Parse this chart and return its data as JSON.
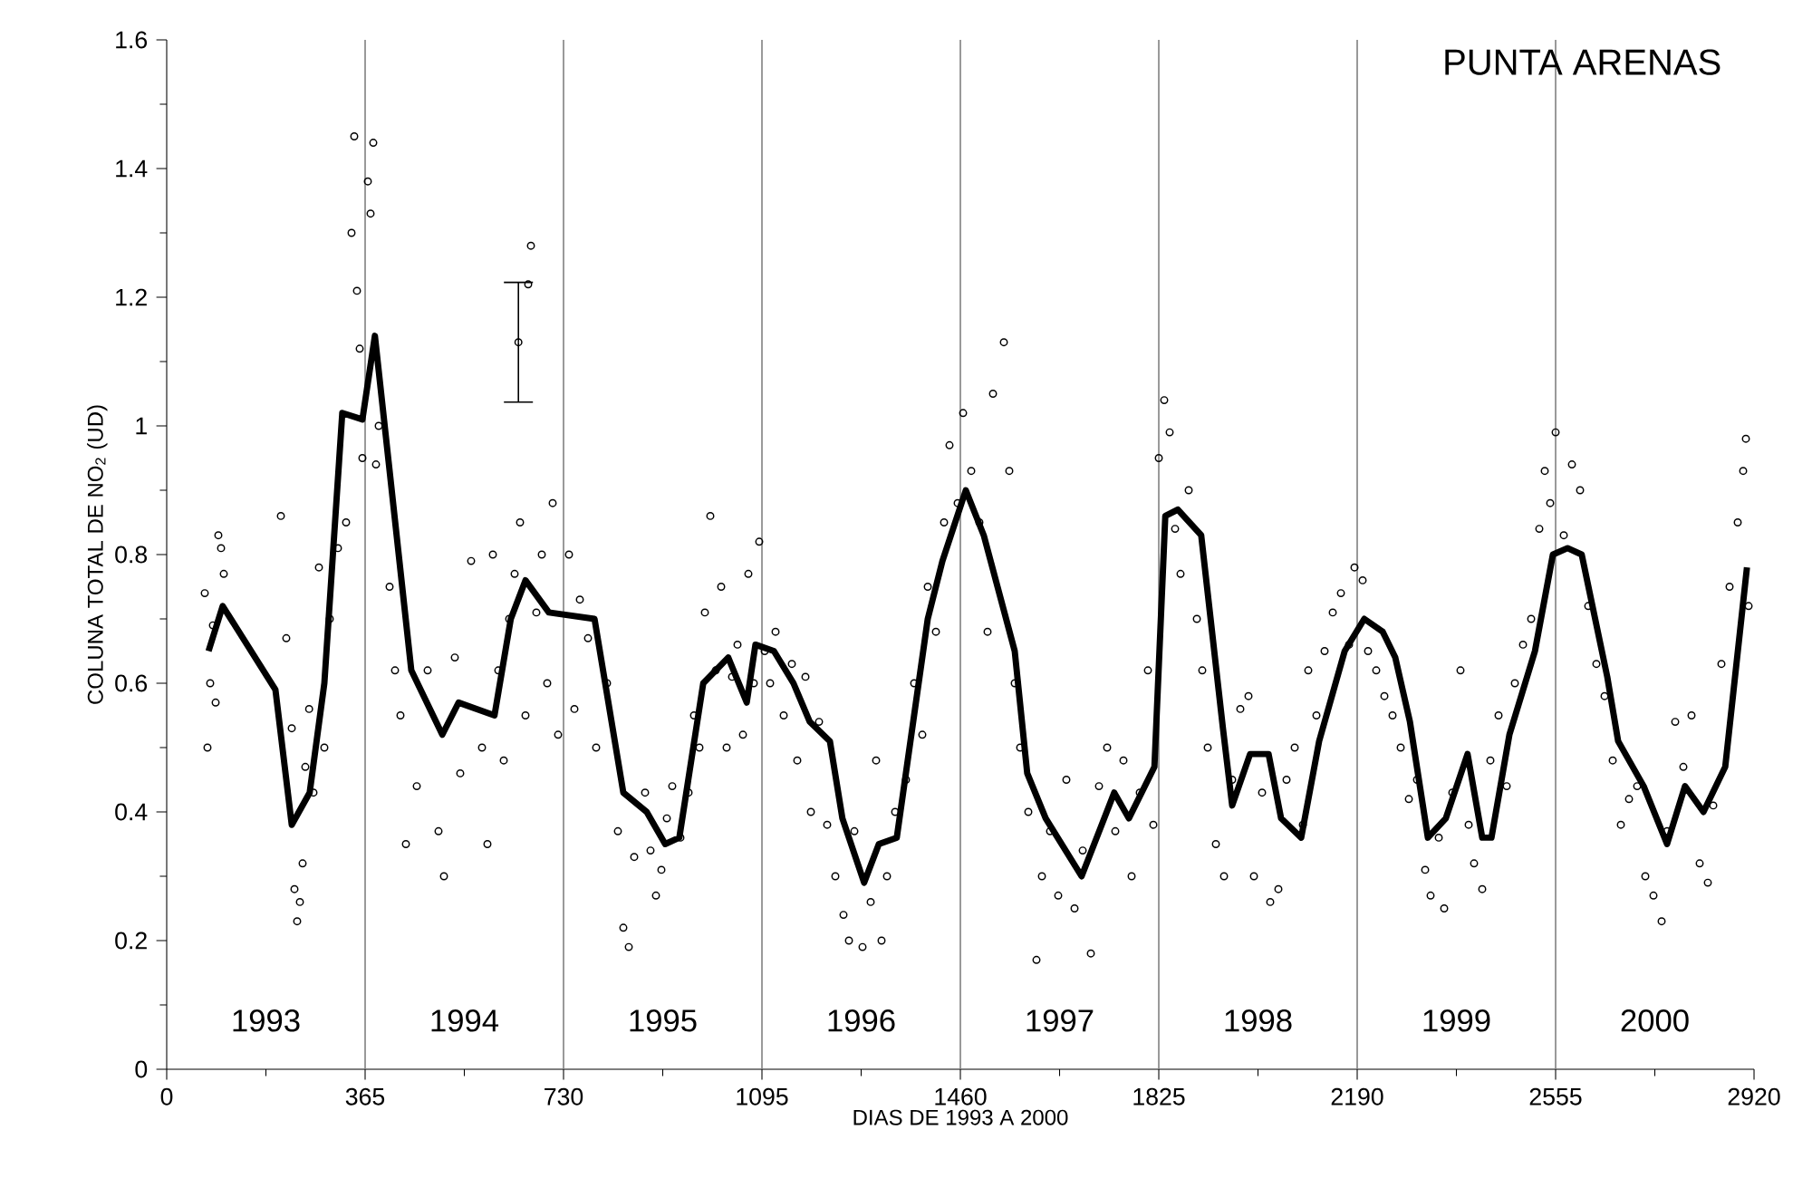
{
  "chart_data": {
    "type": "scatter",
    "title": "PUNTA ARENAS",
    "xlabel": "DIAS DE 1993 A 2000",
    "ylabel": "COLUNA TOTAL DE NO$_{2}$ (UD)",
    "xlim": [
      0,
      2920
    ],
    "xticks": [
      0,
      365,
      730,
      1095,
      1460,
      1825,
      2190,
      2555,
      2920
    ],
    "ylim": [
      0,
      1.6
    ],
    "yticks": [
      0,
      0.2,
      0.4,
      0.6,
      0.8,
      1,
      1.2,
      1.4,
      1.6
    ],
    "ref_lines": [
      {
        "axis": "x",
        "value": 365,
        "color": "#808080"
      },
      {
        "axis": "x",
        "value": 730,
        "color": "#808080"
      },
      {
        "axis": "x",
        "value": 1095,
        "color": "#808080"
      },
      {
        "axis": "x",
        "value": 1460,
        "color": "#808080"
      },
      {
        "axis": "x",
        "value": 1825,
        "color": "#808080"
      },
      {
        "axis": "x",
        "value": 2190,
        "color": "#808080"
      },
      {
        "axis": "x",
        "value": 2555,
        "color": "#808080"
      }
    ],
    "annotations": [
      "1993",
      "1994",
      "1995",
      "1996",
      "1997",
      "1998",
      "1999",
      "2000"
    ],
    "series": [
      {
        "marker": "circle",
        "color": "#000000",
        "x": [
          70,
          75,
          80,
          85,
          90,
          95,
          100,
          105,
          210,
          220,
          230,
          235,
          240,
          245,
          250,
          255,
          262,
          270,
          280,
          290,
          300,
          315,
          330,
          340,
          345,
          350,
          355,
          360,
          370,
          375,
          380,
          385,
          390,
          410,
          420,
          430,
          440,
          460,
          480,
          500,
          510,
          530,
          540,
          560,
          580,
          590,
          600,
          610,
          620,
          630,
          640,
          650,
          660,
          680,
          690,
          700,
          710,
          720,
          740,
          750,
          760,
          775,
          790,
          665,
          670,
          810,
          830,
          840,
          850,
          860,
          880,
          890,
          900,
          910,
          920,
          930,
          945,
          960,
          970,
          980,
          990,
          1000,
          1010,
          1020,
          1030,
          1040,
          1050,
          1060,
          1070,
          1080,
          1090,
          1100,
          1110,
          1120,
          1135,
          1150,
          1160,
          1175,
          1185,
          1200,
          1215,
          1230,
          1245,
          1255,
          1265,
          1280,
          1295,
          1305,
          1315,
          1325,
          1340,
          1360,
          1375,
          1390,
          1400,
          1415,
          1430,
          1440,
          1455,
          1465,
          1480,
          1495,
          1510,
          1520,
          1540,
          1550,
          1560,
          1570,
          1585,
          1600,
          1610,
          1625,
          1640,
          1655,
          1670,
          1685,
          1700,
          1715,
          1730,
          1745,
          1760,
          1775,
          1790,
          1805,
          1815,
          1825,
          1835,
          1845,
          1855,
          1865,
          1880,
          1895,
          1905,
          1915,
          1930,
          1945,
          1960,
          1975,
          1990,
          2000,
          2015,
          2030,
          2045,
          2060,
          2075,
          2090,
          2100,
          2115,
          2130,
          2145,
          2160,
          2175,
          2185,
          2200,
          2210,
          2225,
          2240,
          2255,
          2270,
          2285,
          2300,
          2315,
          2325,
          2340,
          2350,
          2365,
          2380,
          2395,
          2405,
          2420,
          2435,
          2450,
          2465,
          2480,
          2495,
          2510,
          2525,
          2535,
          2545,
          2555,
          2570,
          2585,
          2600,
          2615,
          2630,
          2645,
          2660,
          2675,
          2690,
          2705,
          2720,
          2735,
          2750,
          2760,
          2775,
          2790,
          2805,
          2820,
          2835,
          2845,
          2860,
          2875,
          2890,
          2900,
          2905,
          2910
        ],
        "values": [
          0.74,
          0.5,
          0.6,
          0.69,
          0.57,
          0.83,
          0.81,
          0.77,
          0.86,
          0.67,
          0.53,
          0.28,
          0.23,
          0.26,
          0.32,
          0.47,
          0.56,
          0.43,
          0.78,
          0.5,
          0.7,
          0.81,
          0.85,
          1.3,
          1.45,
          1.21,
          1.12,
          0.95,
          1.38,
          1.33,
          1.44,
          0.94,
          1.0,
          0.75,
          0.62,
          0.55,
          0.35,
          0.44,
          0.62,
          0.37,
          0.3,
          0.64,
          0.46,
          0.79,
          0.5,
          0.35,
          0.8,
          0.62,
          0.48,
          0.7,
          0.77,
          0.85,
          0.55,
          0.71,
          0.8,
          0.6,
          0.88,
          0.52,
          0.8,
          0.56,
          0.73,
          0.67,
          0.5,
          1.22,
          1.28,
          0.6,
          0.37,
          0.22,
          0.19,
          0.33,
          0.43,
          0.34,
          0.27,
          0.31,
          0.39,
          0.44,
          0.36,
          0.43,
          0.55,
          0.5,
          0.71,
          0.86,
          0.62,
          0.75,
          0.5,
          0.61,
          0.66,
          0.52,
          0.77,
          0.6,
          0.82,
          0.65,
          0.6,
          0.68,
          0.55,
          0.63,
          0.48,
          0.61,
          0.4,
          0.54,
          0.38,
          0.3,
          0.24,
          0.2,
          0.37,
          0.19,
          0.26,
          0.48,
          0.2,
          0.3,
          0.4,
          0.45,
          0.6,
          0.52,
          0.75,
          0.68,
          0.85,
          0.97,
          0.88,
          1.02,
          0.93,
          0.85,
          0.68,
          1.05,
          1.13,
          0.93,
          0.6,
          0.5,
          0.4,
          0.17,
          0.3,
          0.37,
          0.27,
          0.45,
          0.25,
          0.34,
          0.18,
          0.44,
          0.5,
          0.37,
          0.48,
          0.3,
          0.43,
          0.62,
          0.38,
          0.95,
          1.04,
          0.99,
          0.84,
          0.77,
          0.9,
          0.7,
          0.62,
          0.5,
          0.35,
          0.3,
          0.45,
          0.56,
          0.58,
          0.3,
          0.43,
          0.26,
          0.28,
          0.45,
          0.5,
          0.38,
          0.62,
          0.55,
          0.65,
          0.71,
          0.74,
          0.66,
          0.78,
          0.76,
          0.65,
          0.62,
          0.58,
          0.55,
          0.5,
          0.42,
          0.45,
          0.31,
          0.27,
          0.36,
          0.25,
          0.43,
          0.62,
          0.38,
          0.32,
          0.28,
          0.48,
          0.55,
          0.44,
          0.6,
          0.66,
          0.7,
          0.84,
          0.93,
          0.88,
          0.99,
          0.83,
          0.94,
          0.9,
          0.72,
          0.63,
          0.58,
          0.48,
          0.38,
          0.42,
          0.44,
          0.3,
          0.27,
          0.23,
          0.37,
          0.54,
          0.47,
          0.55,
          0.32,
          0.29,
          0.41,
          0.63,
          0.75,
          0.85,
          0.93,
          0.98,
          0.72
        ]
      },
      {
        "type": "line",
        "marker": "none",
        "line_style": "solid",
        "color": "#000000",
        "x": [
          77,
          103,
          200,
          230,
          263,
          290,
          323,
          360,
          383,
          450,
          507,
          537,
          603,
          633,
          660,
          703,
          787,
          840,
          883,
          917,
          943,
          987,
          1033,
          1067,
          1083,
          1117,
          1153,
          1183,
          1220,
          1243,
          1283,
          1310,
          1343,
          1400,
          1427,
          1470,
          1503,
          1560,
          1583,
          1617,
          1683,
          1720,
          1743,
          1770,
          1817,
          1837,
          1860,
          1903,
          1943,
          1960,
          1993,
          2027,
          2050,
          2087,
          2120,
          2167,
          2203,
          2237,
          2260,
          2287,
          2320,
          2353,
          2393,
          2420,
          2437,
          2470,
          2517,
          2550,
          2577,
          2603,
          2650,
          2670,
          2717,
          2760,
          2793,
          2827,
          2867,
          2907
        ],
        "values": [
          0.65,
          0.72,
          0.59,
          0.38,
          0.43,
          0.6,
          1.02,
          1.01,
          1.14,
          0.62,
          0.52,
          0.57,
          0.55,
          0.7,
          0.76,
          0.71,
          0.7,
          0.43,
          0.4,
          0.35,
          0.36,
          0.6,
          0.64,
          0.57,
          0.66,
          0.65,
          0.6,
          0.54,
          0.51,
          0.39,
          0.29,
          0.35,
          0.36,
          0.7,
          0.79,
          0.9,
          0.83,
          0.65,
          0.46,
          0.39,
          0.3,
          0.38,
          0.43,
          0.39,
          0.47,
          0.86,
          0.87,
          0.83,
          0.53,
          0.41,
          0.49,
          0.49,
          0.39,
          0.36,
          0.51,
          0.65,
          0.7,
          0.68,
          0.64,
          0.54,
          0.36,
          0.39,
          0.49,
          0.36,
          0.36,
          0.52,
          0.65,
          0.8,
          0.81,
          0.8,
          0.61,
          0.51,
          0.44,
          0.35,
          0.44,
          0.4,
          0.47,
          0.78
        ]
      },
      {
        "type": "scatter",
        "marker": "circle",
        "color": "#000000",
        "x": [
          647
        ],
        "values": [
          1.13
        ],
        "errors": [
          0.093
        ]
      }
    ]
  }
}
